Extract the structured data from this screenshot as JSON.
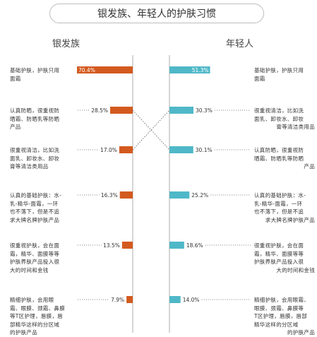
{
  "title": "银发族、年轻人的护肤习惯",
  "colors": {
    "left": "#d35a1f",
    "right": "#4fb8c8",
    "axis": "#bbbbbb",
    "connector": "#555555"
  },
  "chart_data": {
    "type": "bar",
    "title": "银发族、年轻人的护肤习惯",
    "ylim": [
      0,
      100
    ],
    "series": [
      {
        "name": "银发族",
        "labels": [
          "基础护肤，护肤只用面霜",
          "认真防晒，很重视防晒霜、防晒乳等防晒产品",
          "很重视清洁，比如洗面乳、卸妆水、卸妆膏等清洁类用品",
          "认真的基础护肤：水-乳-精华-面霜，一环也不落下，但是不追求大牌名牌护肤产品",
          "很重视护肤，会在面霜，精华、面膜等等护肤养肤产品投入很大的时间和金钱",
          "精细护肤，会用眼霜、眼膜、颈霜、鼻膜等T区护理，唇膜，唇部精华这样的分区域的护肤产品"
        ],
        "values": [
          70.4,
          28.5,
          17.0,
          16.3,
          13.5,
          7.9
        ],
        "value_labels": [
          "70.4%",
          "28.5%",
          "17.0%",
          "16.3%",
          "13.5%",
          "7.9%"
        ]
      },
      {
        "name": "年轻人",
        "labels": [
          "基础护肤，护肤只用面霜",
          "很重视清洁，比如洗面乳、卸妆水、卸妆膏等清洁类用品",
          "认真防晒，很重视防晒霜、防晒乳等防晒产品",
          "认真的基础护肤：水-乳-精华-面霜，一环也不落下，但是不追求大牌名牌护肤产品",
          "很重视护肤，会在面霜，精华、面膜等等护肤养肤产品投入很大的时间和金钱",
          "精细护肤，会用眼霜、眼膜、颈霜、鼻膜等T区护理，唇膜，唇部精华这样的分区域的护肤产品"
        ],
        "values": [
          51.3,
          30.3,
          30.1,
          25.2,
          18.6,
          14.0
        ],
        "value_labels": [
          "51.3%",
          "30.3%",
          "30.1%",
          "25.2%",
          "18.6%",
          "14.0%"
        ]
      }
    ],
    "connectors": [
      [
        1,
        2
      ],
      [
        2,
        1
      ]
    ]
  },
  "desc_lines": {
    "left": [
      [
        "基础护肤，护肤只用",
        "面霜"
      ],
      [
        "认真防晒，很重视防",
        "晒霜、防晒乳等防晒",
        "产品"
      ],
      [
        "很重视清洁，比如洗",
        "面乳、卸妆水、卸妆",
        "膏等清洁类用品"
      ],
      [
        "认真的基础护肤：水-",
        "乳-精华-面霜，一环",
        "也不落下，但是不追",
        "求大牌名牌护肤产品"
      ],
      [
        "很重视护肤，会在面",
        "霜，精华、面膜等等",
        "护肤养肤产品投入很",
        "大的时间和金钱"
      ],
      [
        "精细护肤，会用眼",
        "霜、眼膜、颈霜、鼻膜",
        "等T区护理，唇膜，唇",
        "部精华这样的分区域",
        "的护肤产品"
      ]
    ],
    "right": [
      [
        "基础护肤，护肤只用",
        "面霜"
      ],
      [
        "很重视清洁，比如洗",
        "面乳、卸妆水、卸妆",
        "膏等清洁类用品"
      ],
      [
        "认真防晒，很重视防",
        "晒霜、防晒乳等防晒",
        "产品"
      ],
      [
        "认真的基础护肤：水-",
        "乳-精华-面霜，一环",
        "也不落下，但是不追",
        "求大牌名牌护肤产品"
      ],
      [
        "很重视护肤，会在面",
        "霜，精华、面膜等等",
        "护肤养肤产品投入很",
        "大的时间和金钱"
      ],
      [
        "精细护肤，会用眼霜、",
        "眼膜、颈霜、鼻膜等",
        "T区护理，唇膜，唇部",
        "精华这样的分区域",
        "的护肤产品"
      ]
    ]
  }
}
